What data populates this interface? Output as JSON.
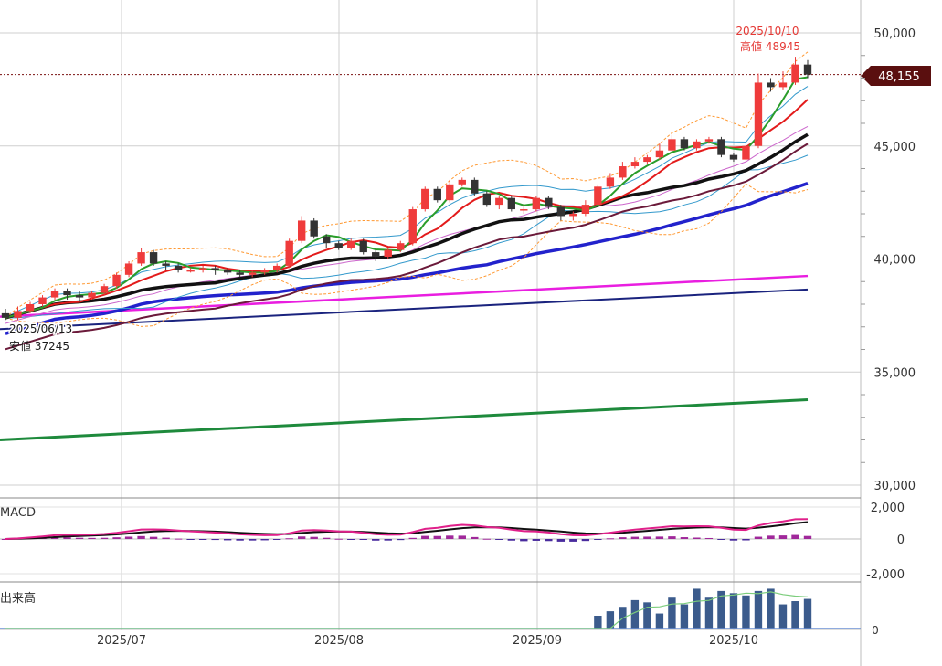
{
  "chart_data": {
    "type": "candlestick",
    "x_ticks": [
      "2025/07",
      "2025/08",
      "2025/09",
      "2025/10"
    ],
    "y_ticks": [
      "50,000",
      "45,000",
      "40,000",
      "35,000",
      "30,000"
    ],
    "ylim": [
      29800,
      50600
    ],
    "current_price": 48155,
    "current_price_label": "48,155",
    "high": {
      "date": "2025/10/10",
      "label": "高値 48945",
      "value": 48945
    },
    "low": {
      "date": "2025/06/13",
      "label": "安値 37245",
      "value": 37245
    },
    "candles": [
      [
        37600,
        37400,
        37800,
        37300
      ],
      [
        37400,
        37700,
        37900,
        37300
      ],
      [
        37700,
        38000,
        38100,
        37600
      ],
      [
        38000,
        38300,
        38400,
        37900
      ],
      [
        38300,
        38600,
        38700,
        38200
      ],
      [
        38600,
        38400,
        38700,
        38200
      ],
      [
        38400,
        38300,
        38600,
        38100
      ],
      [
        38300,
        38500,
        38600,
        38200
      ],
      [
        38500,
        38800,
        38900,
        38400
      ],
      [
        38800,
        39300,
        39400,
        38700
      ],
      [
        39300,
        39800,
        39900,
        39200
      ],
      [
        39800,
        40300,
        40500,
        39700
      ],
      [
        40300,
        39800,
        40400,
        39700
      ],
      [
        39800,
        39700,
        39900,
        39500
      ],
      [
        39700,
        39500,
        39800,
        39400
      ],
      [
        39500,
        39500,
        39600,
        39400
      ],
      [
        39500,
        39600,
        39700,
        39400
      ],
      [
        39600,
        39500,
        39700,
        39300
      ],
      [
        39500,
        39400,
        39600,
        39300
      ],
      [
        39400,
        39300,
        39500,
        39200
      ],
      [
        39300,
        39400,
        39500,
        39200
      ],
      [
        39400,
        39500,
        39600,
        39300
      ],
      [
        39500,
        39700,
        39800,
        39400
      ],
      [
        39700,
        40800,
        40900,
        39600
      ],
      [
        40800,
        41700,
        41900,
        40700
      ],
      [
        41700,
        41000,
        41800,
        40900
      ],
      [
        41000,
        40700,
        41100,
        40500
      ],
      [
        40700,
        40500,
        40800,
        40400
      ],
      [
        40500,
        40800,
        40900,
        40400
      ],
      [
        40800,
        40300,
        40900,
        40200
      ],
      [
        40300,
        40100,
        40400,
        39900
      ],
      [
        40100,
        40400,
        40500,
        40000
      ],
      [
        40400,
        40700,
        40800,
        40300
      ],
      [
        40700,
        42200,
        42300,
        40600
      ],
      [
        42200,
        43100,
        43200,
        42100
      ],
      [
        43100,
        42600,
        43200,
        42500
      ],
      [
        42600,
        43300,
        43500,
        42500
      ],
      [
        43300,
        43500,
        43600,
        43200
      ],
      [
        43500,
        42900,
        43600,
        42800
      ],
      [
        42900,
        42400,
        43000,
        42300
      ],
      [
        42400,
        42700,
        42800,
        42200
      ],
      [
        42700,
        42200,
        42800,
        42100
      ],
      [
        42200,
        42200,
        42400,
        42000
      ],
      [
        42200,
        42700,
        42800,
        42100
      ],
      [
        42700,
        42300,
        42800,
        42200
      ],
      [
        42300,
        41900,
        42400,
        41700
      ],
      [
        41900,
        42000,
        42100,
        41700
      ],
      [
        42000,
        42400,
        42600,
        41900
      ],
      [
        42400,
        43200,
        43300,
        42300
      ],
      [
        43200,
        43600,
        43800,
        43100
      ],
      [
        43600,
        44100,
        44300,
        43500
      ],
      [
        44100,
        44300,
        44500,
        44000
      ],
      [
        44300,
        44500,
        44600,
        44200
      ],
      [
        44500,
        44800,
        45100,
        44400
      ],
      [
        44800,
        45300,
        45500,
        44700
      ],
      [
        45300,
        44900,
        45400,
        44800
      ],
      [
        44900,
        45200,
        45300,
        44800
      ],
      [
        45200,
        45300,
        45400,
        45100
      ],
      [
        45300,
        44600,
        45400,
        44500
      ],
      [
        44600,
        44400,
        44700,
        44300
      ],
      [
        44400,
        45000,
        45100,
        44300
      ],
      [
        45000,
        47800,
        48200,
        44900
      ],
      [
        47800,
        47600,
        48000,
        47400
      ],
      [
        47600,
        47800,
        48300,
        47500
      ],
      [
        47800,
        48600,
        48945,
        47700
      ],
      [
        48600,
        48155,
        48800,
        48000
      ]
    ],
    "indicators": [
      "MACD",
      "出来高"
    ],
    "macd_ticks": [
      "2,000",
      "0",
      "-2,000"
    ]
  }
}
